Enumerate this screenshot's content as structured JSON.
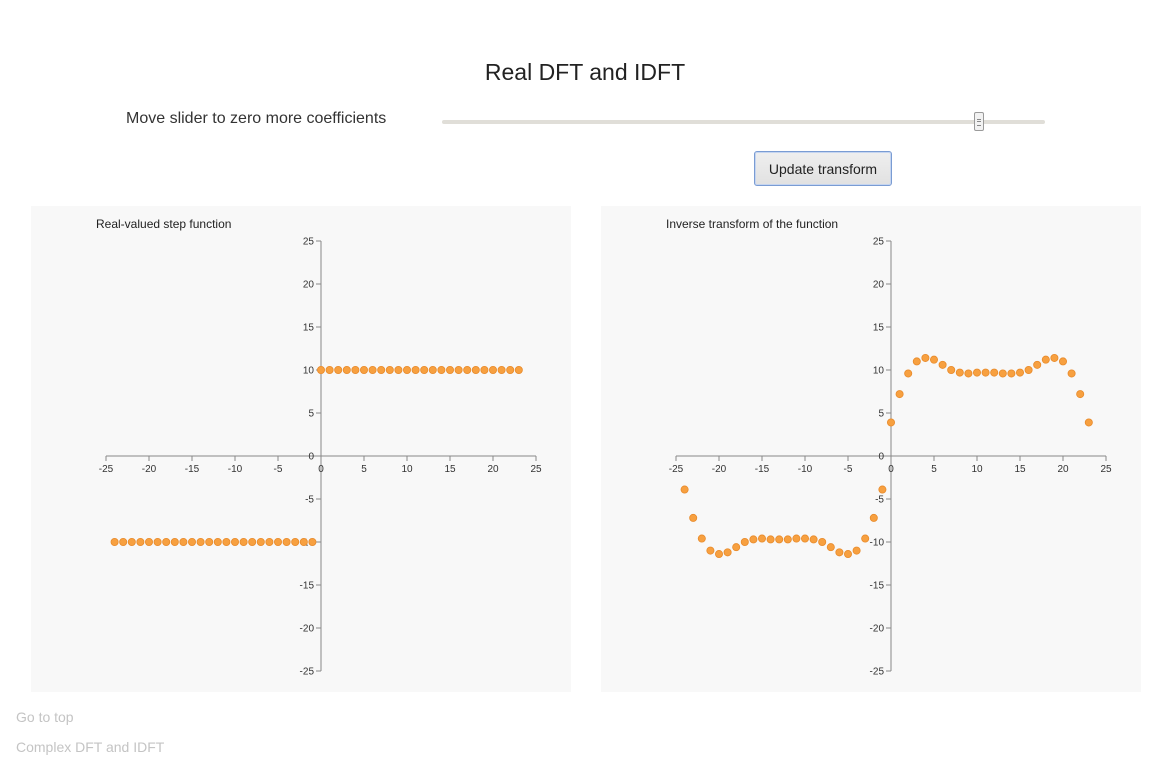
{
  "page": {
    "title": "Real DFT and IDFT"
  },
  "controls": {
    "slider_label": "Move slider to zero more coefficients",
    "slider_value_fraction": 0.89,
    "update_button_label": "Update transform"
  },
  "footer": {
    "go_to_top": "Go to top",
    "complex_link": "Complex DFT and IDFT"
  },
  "colors": {
    "point_fill": "#f7a040",
    "point_stroke": "#e88a2a",
    "axis": "#888888",
    "panel_bg": "#f8f8f8"
  },
  "chart_data": [
    {
      "type": "scatter",
      "title": "Real-valued step function",
      "xlim": [
        -25,
        25
      ],
      "ylim": [
        -25,
        25
      ],
      "x_ticks": [
        -25,
        -20,
        -15,
        -10,
        -5,
        0,
        5,
        10,
        15,
        20,
        25
      ],
      "y_ticks": [
        -25,
        -20,
        -15,
        -10,
        -5,
        0,
        5,
        10,
        15,
        20,
        25
      ],
      "grid": false,
      "x": [
        -24,
        -23,
        -22,
        -21,
        -20,
        -19,
        -18,
        -17,
        -16,
        -15,
        -14,
        -13,
        -12,
        -11,
        -10,
        -9,
        -8,
        -7,
        -6,
        -5,
        -4,
        -3,
        -2,
        -1,
        0,
        1,
        2,
        3,
        4,
        5,
        6,
        7,
        8,
        9,
        10,
        11,
        12,
        13,
        14,
        15,
        16,
        17,
        18,
        19,
        20,
        21,
        22,
        23
      ],
      "y": [
        -10,
        -10,
        -10,
        -10,
        -10,
        -10,
        -10,
        -10,
        -10,
        -10,
        -10,
        -10,
        -10,
        -10,
        -10,
        -10,
        -10,
        -10,
        -10,
        -10,
        -10,
        -10,
        -10,
        -10,
        10,
        10,
        10,
        10,
        10,
        10,
        10,
        10,
        10,
        10,
        10,
        10,
        10,
        10,
        10,
        10,
        10,
        10,
        10,
        10,
        10,
        10,
        10,
        10
      ]
    },
    {
      "type": "scatter",
      "title": "Inverse transform of the function",
      "xlim": [
        -25,
        25
      ],
      "ylim": [
        -25,
        25
      ],
      "x_ticks": [
        -25,
        -20,
        -15,
        -10,
        -5,
        0,
        5,
        10,
        15,
        20,
        25
      ],
      "y_ticks": [
        -25,
        -20,
        -15,
        -10,
        -5,
        0,
        5,
        10,
        15,
        20,
        25
      ],
      "grid": false,
      "x": [
        -24,
        -23,
        -22,
        -21,
        -20,
        -19,
        -18,
        -17,
        -16,
        -15,
        -14,
        -13,
        -12,
        -11,
        -10,
        -9,
        -8,
        -7,
        -6,
        -5,
        -4,
        -3,
        -2,
        -1,
        0,
        1,
        2,
        3,
        4,
        5,
        6,
        7,
        8,
        9,
        10,
        11,
        12,
        13,
        14,
        15,
        16,
        17,
        18,
        19,
        20,
        21,
        22,
        23
      ],
      "y": [
        -3.9,
        -7.2,
        -9.6,
        -11,
        -11.4,
        -11.2,
        -10.6,
        -10,
        -9.7,
        -9.6,
        -9.7,
        -9.7,
        -9.7,
        -9.6,
        -9.6,
        -9.7,
        -10,
        -10.6,
        -11.2,
        -11.4,
        -11,
        -9.6,
        -7.2,
        -3.9,
        3.9,
        7.2,
        9.6,
        11,
        11.4,
        11.2,
        10.6,
        10,
        9.7,
        9.6,
        9.7,
        9.7,
        9.7,
        9.6,
        9.6,
        9.7,
        10,
        10.6,
        11.2,
        11.4,
        11,
        9.6,
        7.2,
        3.9
      ]
    }
  ]
}
